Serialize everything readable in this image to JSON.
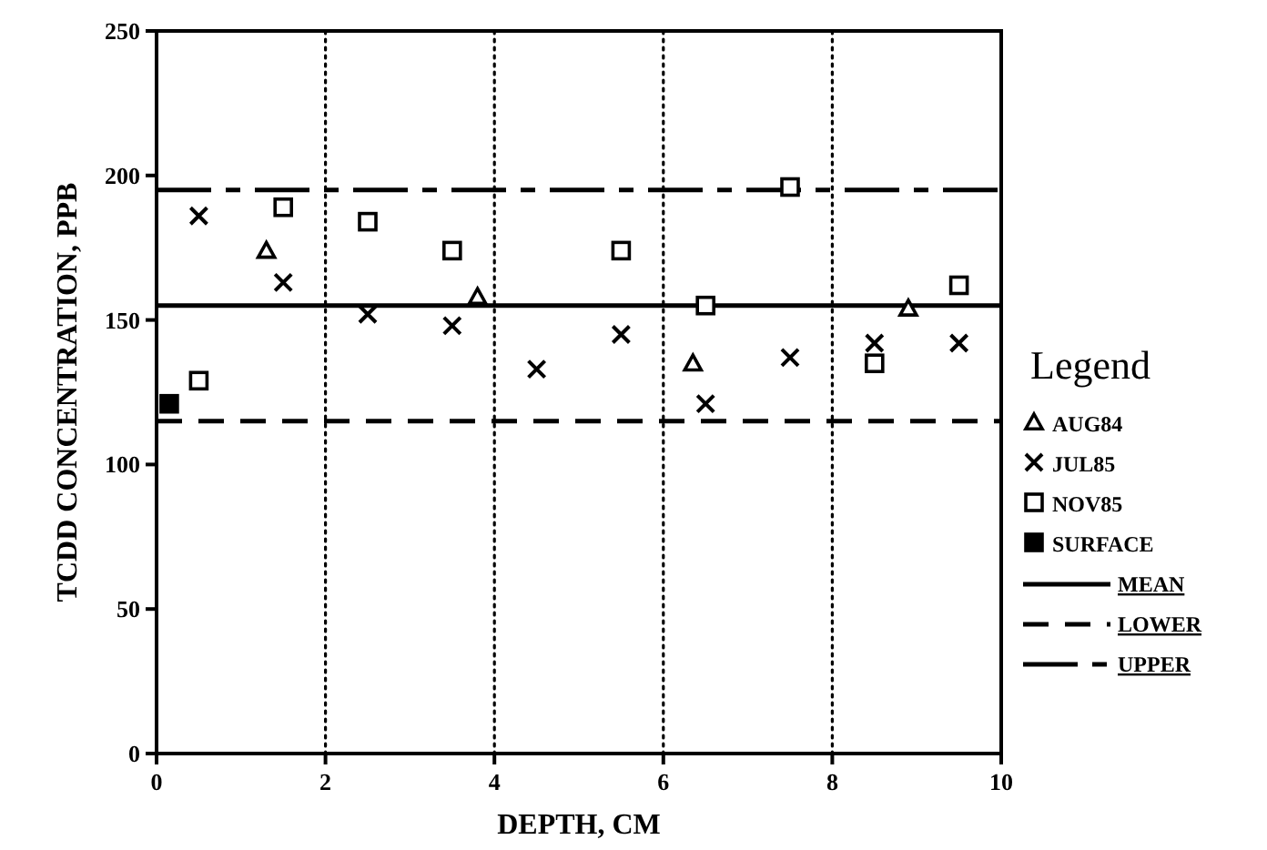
{
  "chart_data": {
    "type": "scatter",
    "xlabel": "DEPTH, CM",
    "ylabel": "TCDD CONCENTRATION, PPB",
    "legend_title": "Legend",
    "legend": "right",
    "grid": "x",
    "xlim": [
      0,
      10
    ],
    "xticks": [
      0,
      2,
      4,
      6,
      8,
      10
    ],
    "ylim": [
      0,
      250
    ],
    "yticks": [
      0,
      50,
      100,
      150,
      200,
      250
    ],
    "series": [
      {
        "name": "AUG84",
        "color": "#000000",
        "marker": "triangle",
        "x": [
          1.3,
          3.8,
          6.35,
          8.9
        ],
        "values": [
          174,
          158,
          135,
          154
        ]
      },
      {
        "name": "JUL85",
        "color": "#000000",
        "marker": "cross",
        "x": [
          0.5,
          1.5,
          2.5,
          3.5,
          4.5,
          5.5,
          6.5,
          7.5,
          8.5,
          9.5
        ],
        "values": [
          186,
          163,
          152,
          148,
          133,
          145,
          121,
          137,
          142,
          142
        ]
      },
      {
        "name": "NOV85",
        "color": "#000000",
        "marker": "square",
        "x": [
          0.5,
          1.5,
          2.5,
          3.5,
          5.5,
          6.5,
          7.5,
          8.5,
          9.5
        ],
        "values": [
          129,
          189,
          184,
          174,
          174,
          155,
          196,
          135,
          162
        ]
      },
      {
        "name": "SURFACE",
        "color": "#000000",
        "marker": "square",
        "x": [
          0.15
        ],
        "values": [
          121
        ]
      }
    ],
    "ref_lines": [
      {
        "axis": "y",
        "value": 155,
        "label": "MEAN",
        "line_style": "solid"
      },
      {
        "axis": "y",
        "value": 115,
        "label": "LOWER",
        "line_style": "dashed"
      },
      {
        "axis": "y",
        "value": 195,
        "label": "UPPER",
        "line_style": "dashdot"
      }
    ]
  }
}
